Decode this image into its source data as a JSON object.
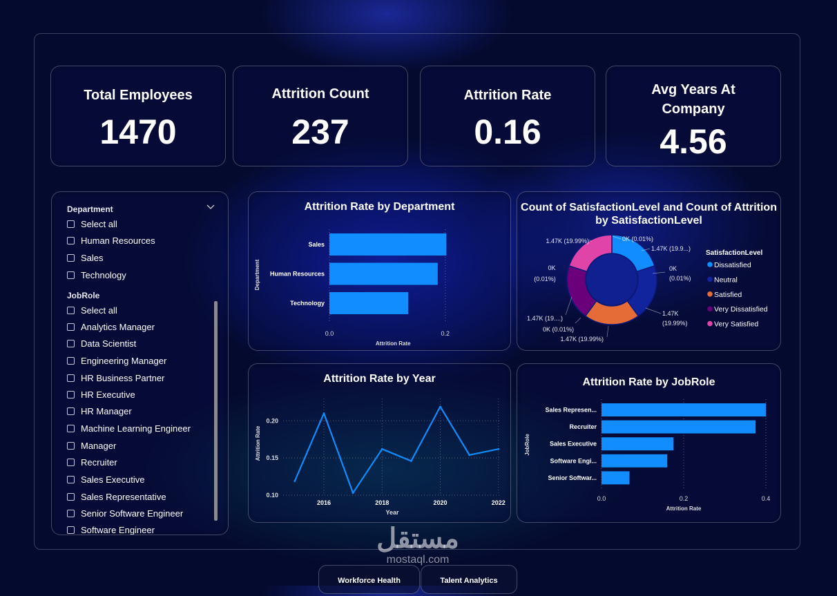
{
  "kpis": [
    {
      "title": "Total Employees",
      "value": "1470"
    },
    {
      "title": "Attrition Count",
      "value": "237"
    },
    {
      "title": "Attrition Rate",
      "value": "0.16"
    },
    {
      "title": "Avg Years At Company",
      "value": "4.56"
    }
  ],
  "slicer": {
    "department": {
      "title": "Department",
      "options": [
        "Select all",
        "Human Resources",
        "Sales",
        "Technology"
      ]
    },
    "jobrole": {
      "title": "JobRole",
      "options": [
        "Select all",
        "Analytics Manager",
        "Data Scientist",
        "Engineering Manager",
        "HR Business Partner",
        "HR Executive",
        "HR Manager",
        "Machine Learning Engineer",
        "Manager",
        "Recruiter",
        "Sales Executive",
        "Sales Representative",
        "Senior Software Engineer",
        "Software Engineer"
      ]
    }
  },
  "tabs": [
    "Workforce Health",
    "Talent Analytics"
  ],
  "watermark": {
    "arabic": "مستقل",
    "latin": "mostaql.com"
  },
  "colors": {
    "bar": "#118dff",
    "dissatisfied": "#118dff",
    "neutral": "#12239e",
    "satisfied": "#e66c37",
    "very_dissatisfied": "#6b007b",
    "very_satisfied": "#e044a7"
  },
  "chart_data": [
    {
      "type": "bar",
      "orientation": "horizontal",
      "title": "Attrition Rate by Department",
      "xlabel": "Attrition Rate",
      "ylabel": "Department",
      "categories": [
        "Sales",
        "Human Resources",
        "Technology"
      ],
      "values": [
        0.202,
        0.187,
        0.136
      ],
      "xlim": [
        0,
        0.22
      ],
      "xticks": [
        "0.0",
        "0.2"
      ],
      "grid": "x-dotted"
    },
    {
      "type": "pie",
      "donut": true,
      "title": "Count of SatisfactionLevel and Count of Attrition by SatisfactionLevel",
      "legend_title": "SatisfactionLevel",
      "legend_position": "right",
      "categories": [
        "Dissatisfied",
        "Neutral",
        "Satisfied",
        "Very Dissatisfied",
        "Very Satisfied"
      ],
      "values": [
        19.99,
        19.99,
        19.99,
        19.99,
        19.99
      ],
      "outer_slices": [
        {
          "name": "Dissatisfied",
          "value": 19.99
        },
        {
          "name": "Neutral",
          "value": 19.99
        },
        {
          "name": "Satisfied",
          "value": 19.99
        },
        {
          "name": "Very Dissatisfied",
          "value": 19.99
        },
        {
          "name": "Very Satisfied",
          "value": 19.99
        }
      ],
      "labels": [
        "0K (0.01%)",
        "1.47K (19.9...)",
        "0K",
        "(0.01%)",
        "1.47K",
        "(19.99%)",
        "1.47K (19.99%)",
        "0K (0.01%)",
        "1.47K (19....)",
        "0K",
        "(0.01%)",
        "1.47K (19.99%)"
      ]
    },
    {
      "type": "line",
      "title": "Attrition Rate by Year",
      "xlabel": "Year",
      "ylabel": "Attrition Rate",
      "x": [
        2015,
        2016,
        2017,
        2018,
        2019,
        2020,
        2021,
        2022
      ],
      "values": [
        0.119,
        0.21,
        0.103,
        0.162,
        0.146,
        0.219,
        0.154,
        0.162
      ],
      "xlim": [
        2014.6,
        2022.1
      ],
      "ylim": [
        0.1,
        0.23
      ],
      "xticks": [
        "2016",
        "2018",
        "2020",
        "2022"
      ],
      "yticks": [
        "0.10",
        "0.15",
        "0.20"
      ],
      "grid": "dotted"
    },
    {
      "type": "bar",
      "orientation": "horizontal",
      "title": "Attrition Rate by JobRole",
      "xlabel": "Attrition Rate",
      "ylabel": "JobRole",
      "categories": [
        "Sales Represen...",
        "Recruiter",
        "Sales Executive",
        "Software Engi...",
        "Senior Softwar..."
      ],
      "values": [
        0.4,
        0.375,
        0.175,
        0.16,
        0.068
      ],
      "xlim": [
        0,
        0.4
      ],
      "xticks": [
        "0.0",
        "0.2",
        "0.4"
      ],
      "grid": "x-dotted"
    }
  ]
}
